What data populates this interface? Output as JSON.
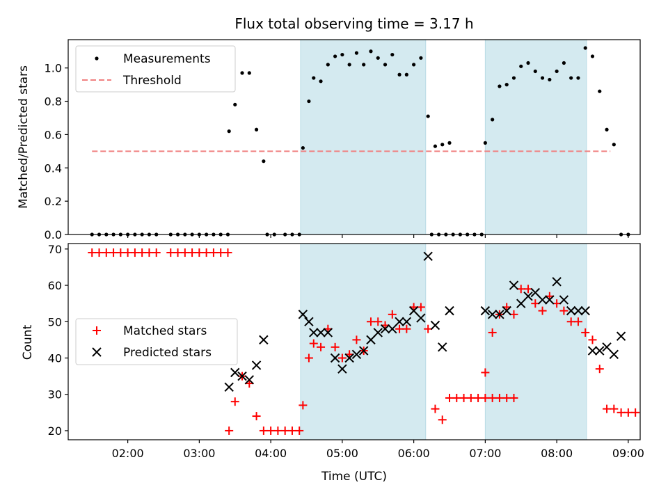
{
  "chart_data": [
    {
      "type": "scatter",
      "title": "Flux total observing time = 3.17 h",
      "xlabel": "",
      "ylabel": "Matched/Predicted stars",
      "xlim": [
        "01:10",
        "09:10"
      ],
      "ylim": [
        0,
        1.17
      ],
      "yticks": [
        0.0,
        0.2,
        0.4,
        0.6,
        0.8,
        1.0
      ],
      "ytick_labels": [
        "0.0",
        "0.2",
        "0.4",
        "0.6",
        "0.8",
        "1.0"
      ],
      "xticks": [
        "02:00",
        "03:00",
        "04:00",
        "05:00",
        "06:00",
        "07:00",
        "08:00",
        "09:00"
      ],
      "grid": false,
      "legend_position": "top-left",
      "shaded_intervals": [
        [
          "04:25",
          "06:10"
        ],
        [
          "07:00",
          "08:25"
        ]
      ],
      "shade_color": "#d4eaf0",
      "series": [
        {
          "name": "Measurements",
          "color": "#000000",
          "marker": "dot",
          "points": [
            [
              "01:30",
              0
            ],
            [
              "01:36",
              0
            ],
            [
              "01:42",
              0
            ],
            [
              "01:48",
              0
            ],
            [
              "01:54",
              0
            ],
            [
              "02:00",
              0
            ],
            [
              "02:06",
              0
            ],
            [
              "02:12",
              0
            ],
            [
              "02:18",
              0
            ],
            [
              "02:24",
              0
            ],
            [
              "02:36",
              0
            ],
            [
              "02:42",
              0
            ],
            [
              "02:48",
              0
            ],
            [
              "02:54",
              0
            ],
            [
              "03:00",
              0
            ],
            [
              "03:06",
              0
            ],
            [
              "03:12",
              0
            ],
            [
              "03:18",
              0
            ],
            [
              "03:24",
              0
            ],
            [
              "03:25",
              0.62
            ],
            [
              "03:30",
              0.78
            ],
            [
              "03:36",
              0.97
            ],
            [
              "03:42",
              0.97
            ],
            [
              "03:48",
              0.63
            ],
            [
              "03:54",
              0.44
            ],
            [
              "03:57",
              0
            ],
            [
              "04:03",
              0
            ],
            [
              "04:12",
              0
            ],
            [
              "04:18",
              0
            ],
            [
              "04:24",
              0
            ],
            [
              "04:27",
              0.52
            ],
            [
              "04:32",
              0.8
            ],
            [
              "04:36",
              0.94
            ],
            [
              "04:42",
              0.92
            ],
            [
              "04:48",
              1.02
            ],
            [
              "04:54",
              1.07
            ],
            [
              "05:00",
              1.08
            ],
            [
              "05:06",
              1.02
            ],
            [
              "05:12",
              1.09
            ],
            [
              "05:18",
              1.02
            ],
            [
              "05:24",
              1.1
            ],
            [
              "05:30",
              1.06
            ],
            [
              "05:36",
              1.02
            ],
            [
              "05:42",
              1.08
            ],
            [
              "05:48",
              0.96
            ],
            [
              "05:54",
              0.96
            ],
            [
              "06:00",
              1.02
            ],
            [
              "06:06",
              1.06
            ],
            [
              "06:12",
              0.71
            ],
            [
              "06:18",
              0.53
            ],
            [
              "06:24",
              0.54
            ],
            [
              "06:30",
              0.55
            ],
            [
              "06:15",
              0
            ],
            [
              "06:21",
              0
            ],
            [
              "06:27",
              0
            ],
            [
              "06:33",
              0
            ],
            [
              "06:39",
              0
            ],
            [
              "06:45",
              0
            ],
            [
              "06:51",
              0
            ],
            [
              "06:57",
              0
            ],
            [
              "07:00",
              0.55
            ],
            [
              "07:06",
              0.69
            ],
            [
              "07:12",
              0.89
            ],
            [
              "07:18",
              0.9
            ],
            [
              "07:24",
              0.94
            ],
            [
              "07:30",
              1.01
            ],
            [
              "07:36",
              1.03
            ],
            [
              "07:42",
              0.98
            ],
            [
              "07:48",
              0.94
            ],
            [
              "07:54",
              0.93
            ],
            [
              "08:00",
              0.98
            ],
            [
              "08:06",
              1.03
            ],
            [
              "08:12",
              0.94
            ],
            [
              "08:18",
              0.94
            ],
            [
              "08:24",
              1.12
            ],
            [
              "08:30",
              1.07
            ],
            [
              "08:36",
              0.86
            ],
            [
              "08:42",
              0.63
            ],
            [
              "08:48",
              0.54
            ],
            [
              "08:54",
              0
            ],
            [
              "09:00",
              0
            ]
          ]
        },
        {
          "name": "Threshold",
          "color": "#f08080",
          "style": "dashed",
          "points": [
            [
              "01:30",
              0.5
            ],
            [
              "08:45",
              0.5
            ]
          ]
        }
      ]
    },
    {
      "type": "scatter",
      "title": "",
      "xlabel": "Time (UTC)",
      "ylabel": "Count",
      "xlim": [
        "01:10",
        "09:10"
      ],
      "ylim": [
        17.5,
        71.5
      ],
      "yticks": [
        20,
        30,
        40,
        50,
        60,
        70
      ],
      "ytick_labels": [
        "20",
        "30",
        "40",
        "50",
        "60",
        "70"
      ],
      "xticks": [
        "02:00",
        "03:00",
        "04:00",
        "05:00",
        "06:00",
        "07:00",
        "08:00",
        "09:00"
      ],
      "xtick_labels": [
        "02:00",
        "03:00",
        "04:00",
        "05:00",
        "06:00",
        "07:00",
        "08:00",
        "09:00"
      ],
      "grid": false,
      "legend_position": "center-left",
      "shaded_intervals": [
        [
          "04:25",
          "06:10"
        ],
        [
          "07:00",
          "08:25"
        ]
      ],
      "shade_color": "#d4eaf0",
      "series": [
        {
          "name": "Matched stars",
          "color": "#ff0000",
          "marker": "plus",
          "points": [
            [
              "01:30",
              69
            ],
            [
              "01:36",
              69
            ],
            [
              "01:42",
              69
            ],
            [
              "01:48",
              69
            ],
            [
              "01:54",
              69
            ],
            [
              "02:00",
              69
            ],
            [
              "02:06",
              69
            ],
            [
              "02:12",
              69
            ],
            [
              "02:18",
              69
            ],
            [
              "02:24",
              69
            ],
            [
              "02:36",
              69
            ],
            [
              "02:42",
              69
            ],
            [
              "02:48",
              69
            ],
            [
              "02:54",
              69
            ],
            [
              "03:00",
              69
            ],
            [
              "03:06",
              69
            ],
            [
              "03:12",
              69
            ],
            [
              "03:18",
              69
            ],
            [
              "03:24",
              69
            ],
            [
              "03:25",
              20
            ],
            [
              "03:30",
              28
            ],
            [
              "03:36",
              35
            ],
            [
              "03:42",
              33
            ],
            [
              "03:48",
              24
            ],
            [
              "03:54",
              20
            ],
            [
              "04:00",
              20
            ],
            [
              "04:06",
              20
            ],
            [
              "04:12",
              20
            ],
            [
              "04:18",
              20
            ],
            [
              "04:24",
              20
            ],
            [
              "04:27",
              27
            ],
            [
              "04:32",
              40
            ],
            [
              "04:36",
              44
            ],
            [
              "04:42",
              43
            ],
            [
              "04:48",
              48
            ],
            [
              "04:54",
              43
            ],
            [
              "05:00",
              40
            ],
            [
              "05:06",
              41
            ],
            [
              "05:12",
              45
            ],
            [
              "05:18",
              42
            ],
            [
              "05:24",
              50
            ],
            [
              "05:30",
              50
            ],
            [
              "05:36",
              49
            ],
            [
              "05:42",
              52
            ],
            [
              "05:48",
              48
            ],
            [
              "05:54",
              48
            ],
            [
              "06:00",
              54
            ],
            [
              "06:06",
              54
            ],
            [
              "06:12",
              48
            ],
            [
              "06:18",
              26
            ],
            [
              "06:24",
              23
            ],
            [
              "06:30",
              29
            ],
            [
              "06:36",
              29
            ],
            [
              "06:42",
              29
            ],
            [
              "06:48",
              29
            ],
            [
              "06:54",
              29
            ],
            [
              "07:00",
              29
            ],
            [
              "07:06",
              29
            ],
            [
              "07:12",
              29
            ],
            [
              "07:18",
              29
            ],
            [
              "07:24",
              29
            ],
            [
              "07:00",
              36
            ],
            [
              "07:06",
              47
            ],
            [
              "07:12",
              52
            ],
            [
              "07:18",
              54
            ],
            [
              "07:24",
              52
            ],
            [
              "07:30",
              59
            ],
            [
              "07:36",
              59
            ],
            [
              "07:42",
              55
            ],
            [
              "07:48",
              53
            ],
            [
              "07:54",
              57
            ],
            [
              "08:00",
              55
            ],
            [
              "08:06",
              53
            ],
            [
              "08:12",
              50
            ],
            [
              "08:18",
              50
            ],
            [
              "08:24",
              47
            ],
            [
              "08:30",
              45
            ],
            [
              "08:36",
              37
            ],
            [
              "08:42",
              26
            ],
            [
              "08:48",
              26
            ],
            [
              "08:54",
              25
            ],
            [
              "09:00",
              25
            ],
            [
              "09:06",
              25
            ]
          ]
        },
        {
          "name": "Predicted stars",
          "color": "#000000",
          "marker": "x",
          "points": [
            [
              "03:25",
              32
            ],
            [
              "03:30",
              36
            ],
            [
              "03:36",
              35
            ],
            [
              "03:42",
              34
            ],
            [
              "03:48",
              38
            ],
            [
              "03:54",
              45
            ],
            [
              "04:27",
              52
            ],
            [
              "04:32",
              50
            ],
            [
              "04:36",
              47
            ],
            [
              "04:42",
              47
            ],
            [
              "04:48",
              47
            ],
            [
              "04:54",
              40
            ],
            [
              "05:00",
              37
            ],
            [
              "05:06",
              40
            ],
            [
              "05:12",
              41
            ],
            [
              "05:18",
              42
            ],
            [
              "05:24",
              45
            ],
            [
              "05:30",
              47
            ],
            [
              "05:36",
              48
            ],
            [
              "05:42",
              48
            ],
            [
              "05:48",
              50
            ],
            [
              "05:54",
              50
            ],
            [
              "06:00",
              53
            ],
            [
              "06:06",
              51
            ],
            [
              "06:12",
              68
            ],
            [
              "06:18",
              49
            ],
            [
              "06:24",
              43
            ],
            [
              "06:30",
              53
            ],
            [
              "07:00",
              53
            ],
            [
              "07:06",
              52
            ],
            [
              "07:12",
              52
            ],
            [
              "07:18",
              53
            ],
            [
              "07:24",
              60
            ],
            [
              "07:30",
              55
            ],
            [
              "07:36",
              57
            ],
            [
              "07:42",
              58
            ],
            [
              "07:48",
              56
            ],
            [
              "07:54",
              56
            ],
            [
              "08:00",
              61
            ],
            [
              "08:06",
              56
            ],
            [
              "08:12",
              53
            ],
            [
              "08:18",
              53
            ],
            [
              "08:24",
              53
            ],
            [
              "08:30",
              42
            ],
            [
              "08:36",
              42
            ],
            [
              "08:42",
              43
            ],
            [
              "08:48",
              41
            ],
            [
              "08:54",
              46
            ]
          ]
        }
      ]
    }
  ]
}
